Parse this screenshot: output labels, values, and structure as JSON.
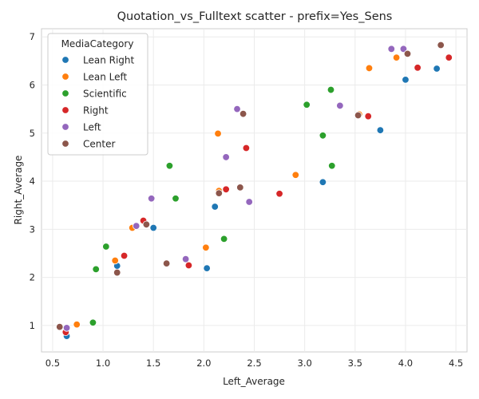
{
  "chart_data": {
    "type": "scatter",
    "title": "Quotation_vs_Fulltext scatter - prefix=Yes_Sens",
    "xlabel": "Left_Average",
    "ylabel": "Right_Average",
    "xlim": [
      0.39,
      4.61
    ],
    "ylim": [
      0.45,
      7.17
    ],
    "xticks": [
      "0.5",
      "1.0",
      "1.5",
      "2.0",
      "2.5",
      "3.0",
      "3.5",
      "4.0",
      "4.5"
    ],
    "yticks": [
      "1",
      "2",
      "3",
      "4",
      "5",
      "6",
      "7"
    ],
    "grid": true,
    "legend_title": "MediaCategory",
    "legend_position": "top-left",
    "series": [
      {
        "name": "Lean Right",
        "color": "#1f77b4",
        "points": [
          [
            0.64,
            0.78
          ],
          [
            1.14,
            2.24
          ],
          [
            1.5,
            3.03
          ],
          [
            2.03,
            2.19
          ],
          [
            2.11,
            3.47
          ],
          [
            3.18,
            3.98
          ],
          [
            3.75,
            5.06
          ],
          [
            4.0,
            6.11
          ],
          [
            4.31,
            6.34
          ]
        ]
      },
      {
        "name": "Lean Left",
        "color": "#ff7f0e",
        "points": [
          [
            0.74,
            1.02
          ],
          [
            1.12,
            2.35
          ],
          [
            1.29,
            3.03
          ],
          [
            2.02,
            2.62
          ],
          [
            2.14,
            4.99
          ],
          [
            2.15,
            3.8
          ],
          [
            2.91,
            4.13
          ],
          [
            3.54,
            5.39
          ],
          [
            3.64,
            6.35
          ],
          [
            3.91,
            6.57
          ]
        ]
      },
      {
        "name": "Scientific",
        "color": "#2ca02c",
        "points": [
          [
            0.9,
            1.06
          ],
          [
            0.93,
            2.17
          ],
          [
            1.03,
            2.64
          ],
          [
            1.66,
            4.32
          ],
          [
            1.72,
            3.64
          ],
          [
            2.2,
            2.8
          ],
          [
            3.02,
            5.59
          ],
          [
            3.18,
            4.95
          ],
          [
            3.26,
            5.9
          ],
          [
            3.27,
            4.32
          ]
        ]
      },
      {
        "name": "Right",
        "color": "#d62728",
        "points": [
          [
            0.63,
            0.86
          ],
          [
            1.21,
            2.45
          ],
          [
            1.4,
            3.18
          ],
          [
            1.85,
            2.25
          ],
          [
            2.22,
            3.83
          ],
          [
            2.42,
            4.69
          ],
          [
            2.75,
            3.74
          ],
          [
            3.63,
            5.35
          ],
          [
            4.12,
            6.36
          ],
          [
            4.43,
            6.57
          ]
        ]
      },
      {
        "name": "Left",
        "color": "#9467bd",
        "points": [
          [
            0.64,
            0.95
          ],
          [
            1.33,
            3.07
          ],
          [
            1.48,
            3.64
          ],
          [
            1.82,
            2.38
          ],
          [
            2.22,
            4.5
          ],
          [
            2.33,
            5.5
          ],
          [
            2.45,
            3.57
          ],
          [
            3.35,
            5.57
          ],
          [
            3.86,
            6.75
          ],
          [
            3.98,
            6.75
          ]
        ]
      },
      {
        "name": "Center",
        "color": "#8c564b",
        "points": [
          [
            0.57,
            0.97
          ],
          [
            1.14,
            2.1
          ],
          [
            1.43,
            3.1
          ],
          [
            1.63,
            2.29
          ],
          [
            2.15,
            3.75
          ],
          [
            2.36,
            3.87
          ],
          [
            2.39,
            5.4
          ],
          [
            3.53,
            5.37
          ],
          [
            4.02,
            6.65
          ],
          [
            4.35,
            6.83
          ]
        ]
      }
    ]
  }
}
